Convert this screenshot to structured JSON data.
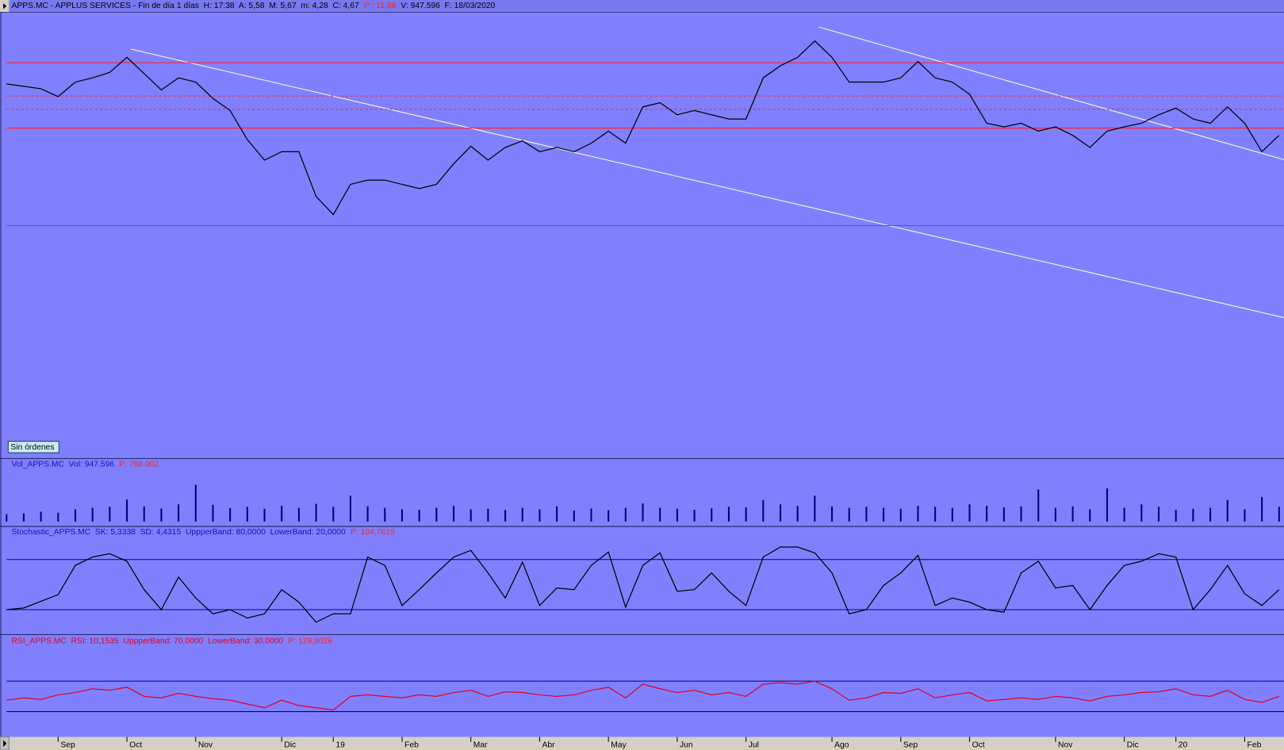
{
  "header": {
    "button": "Sin órdenes"
  },
  "chart_data": [
    {
      "type": "line",
      "title": "APPS.MC - APPLUS SERVICES - Fin de día 1 días  H: 17:38  A: 5,58  M: 5,67  m: 4,28  C: 4,67",
      "subtitle": "P : 11,98",
      "caption": "V: 947.596  F: 18/03/2020",
      "categories": [
        null,
        null,
        null,
        "Sep",
        null,
        null,
        null,
        "Oct",
        null,
        null,
        null,
        "Nov",
        null,
        null,
        null,
        null,
        "Dic",
        null,
        null,
        "19",
        null,
        null,
        null,
        "Feb",
        null,
        null,
        null,
        "Mar",
        null,
        null,
        null,
        "Abr",
        null,
        null,
        null,
        "May",
        null,
        null,
        null,
        "Jun",
        null,
        null,
        null,
        "Jul",
        null,
        null,
        null,
        null,
        "Ago",
        null,
        null,
        null,
        "Sep",
        null,
        null,
        null,
        "Oct",
        null,
        null,
        null,
        null,
        "Nov",
        null,
        null,
        null,
        "Dic",
        null,
        null,
        "20",
        null,
        null,
        null,
        "Feb",
        null,
        null
      ],
      "series": [
        {
          "color": "#000000",
          "values": [
            10.97,
            10.93,
            10.89,
            10.76,
            11.0,
            11.07,
            11.16,
            11.41,
            11.14,
            10.87,
            11.07,
            11.0,
            10.73,
            10.53,
            10.05,
            9.71,
            9.85,
            9.85,
            9.11,
            8.81,
            9.31,
            9.38,
            9.38,
            9.31,
            9.24,
            9.31,
            9.65,
            9.94,
            9.71,
            9.92,
            10.03,
            9.85,
            9.92,
            9.85,
            9.99,
            10.19,
            9.99,
            10.59,
            10.66,
            10.46,
            10.53,
            10.46,
            10.39,
            10.39,
            11.07,
            11.27,
            11.41,
            11.68,
            11.41,
            11.0,
            11.0,
            11.0,
            11.07,
            11.34,
            11.07,
            11.0,
            10.8,
            10.32,
            10.26,
            10.32,
            10.19,
            10.26,
            10.12,
            9.92,
            10.19,
            10.26,
            10.32,
            10.46,
            10.57,
            10.39,
            10.32,
            10.59,
            10.32,
            9.85,
            10.12
          ]
        }
      ],
      "hlines": [
        {
          "value": 11.32,
          "color": "#ff2020",
          "style": "solid"
        },
        {
          "value": 10.24,
          "color": "#ff2020",
          "style": "solid"
        },
        {
          "value": 8.63,
          "color": "#ff2020",
          "style": "solid"
        },
        {
          "value": 10.77,
          "color": "#ff2020",
          "style": "dashed"
        },
        {
          "value": 10.55,
          "color": "#ff2020",
          "style": "dashed"
        }
      ],
      "ylim": [
        4.78,
        12.14
      ]
    },
    {
      "type": "bar",
      "title": "Vol_APPS.MC  Vol: 947.596",
      "subtitle": "P: 768.002",
      "color": "#000080",
      "values": [
        300000,
        330000,
        400000,
        360000,
        500000,
        560000,
        600000,
        900000,
        620000,
        530000,
        700000,
        1500000,
        680000,
        550000,
        600000,
        520000,
        640000,
        560000,
        720000,
        600000,
        1050000,
        620000,
        560000,
        500000,
        480000,
        560000,
        640000,
        500000,
        520000,
        470000,
        560000,
        500000,
        620000,
        450000,
        530000,
        460000,
        560000,
        740000,
        560000,
        520000,
        480000,
        540000,
        600000,
        580000,
        880000,
        700000,
        640000,
        1050000,
        620000,
        560000,
        600000,
        560000,
        520000,
        640000,
        600000,
        560000,
        700000,
        640000,
        580000,
        620000,
        1300000,
        560000,
        620000,
        500000,
        1350000,
        560000,
        700000,
        600000,
        480000,
        520000,
        560000,
        880000,
        500000,
        1000000,
        600000
      ],
      "ylim": [
        0,
        2000000
      ]
    },
    {
      "type": "line",
      "title": "Stochastic_APPS.MC  SK: 5,3338  SD: 4,4315  UppperBand: 80,0000  LowerBand: 20,0000",
      "subtitle": "P: 104,7619",
      "series": [
        {
          "color": "#000000",
          "values": [
            20,
            22,
            30,
            38,
            73,
            83,
            87,
            78,
            44,
            20,
            59,
            34,
            15,
            20,
            10,
            15,
            44,
            29,
            5,
            15,
            15,
            83,
            73,
            25,
            44,
            64,
            83,
            91,
            64,
            34,
            77,
            25,
            46,
            44,
            73,
            89,
            23,
            73,
            88,
            42,
            44,
            64,
            42,
            25,
            83,
            95,
            95,
            88,
            64,
            15,
            20,
            49,
            64,
            85,
            25,
            34,
            29,
            20,
            17,
            64,
            78,
            46,
            49,
            20,
            49,
            73,
            78,
            87,
            83,
            20,
            44,
            73,
            39,
            25,
            44
          ]
        }
      ],
      "bands": [
        80,
        20
      ],
      "band_color": "#000080",
      "ylim": [
        0,
        100
      ]
    },
    {
      "type": "line",
      "title": "RSI_APPS.MC  RSI: 10,1535  UppperBand: 70,0000  LowerBand: 30,0000",
      "subtitle": "P: 129,8026",
      "series": [
        {
          "color": "#e00020",
          "values": [
            45,
            48,
            46,
            52,
            55,
            60,
            58,
            62,
            50,
            48,
            54,
            50,
            47,
            45,
            40,
            35,
            45,
            38,
            35,
            32,
            50,
            52,
            50,
            48,
            52,
            50,
            55,
            58,
            50,
            56,
            55,
            52,
            50,
            52,
            58,
            62,
            48,
            66,
            60,
            55,
            58,
            52,
            55,
            50,
            66,
            68,
            66,
            70,
            60,
            45,
            48,
            55,
            54,
            60,
            48,
            52,
            55,
            44,
            46,
            48,
            46,
            50,
            48,
            44,
            50,
            52,
            55,
            56,
            60,
            52,
            50,
            58,
            46,
            42,
            50
          ]
        }
      ],
      "bands": [
        70,
        30
      ],
      "band_color": "#000080",
      "ylim": [
        0,
        100
      ]
    }
  ]
}
